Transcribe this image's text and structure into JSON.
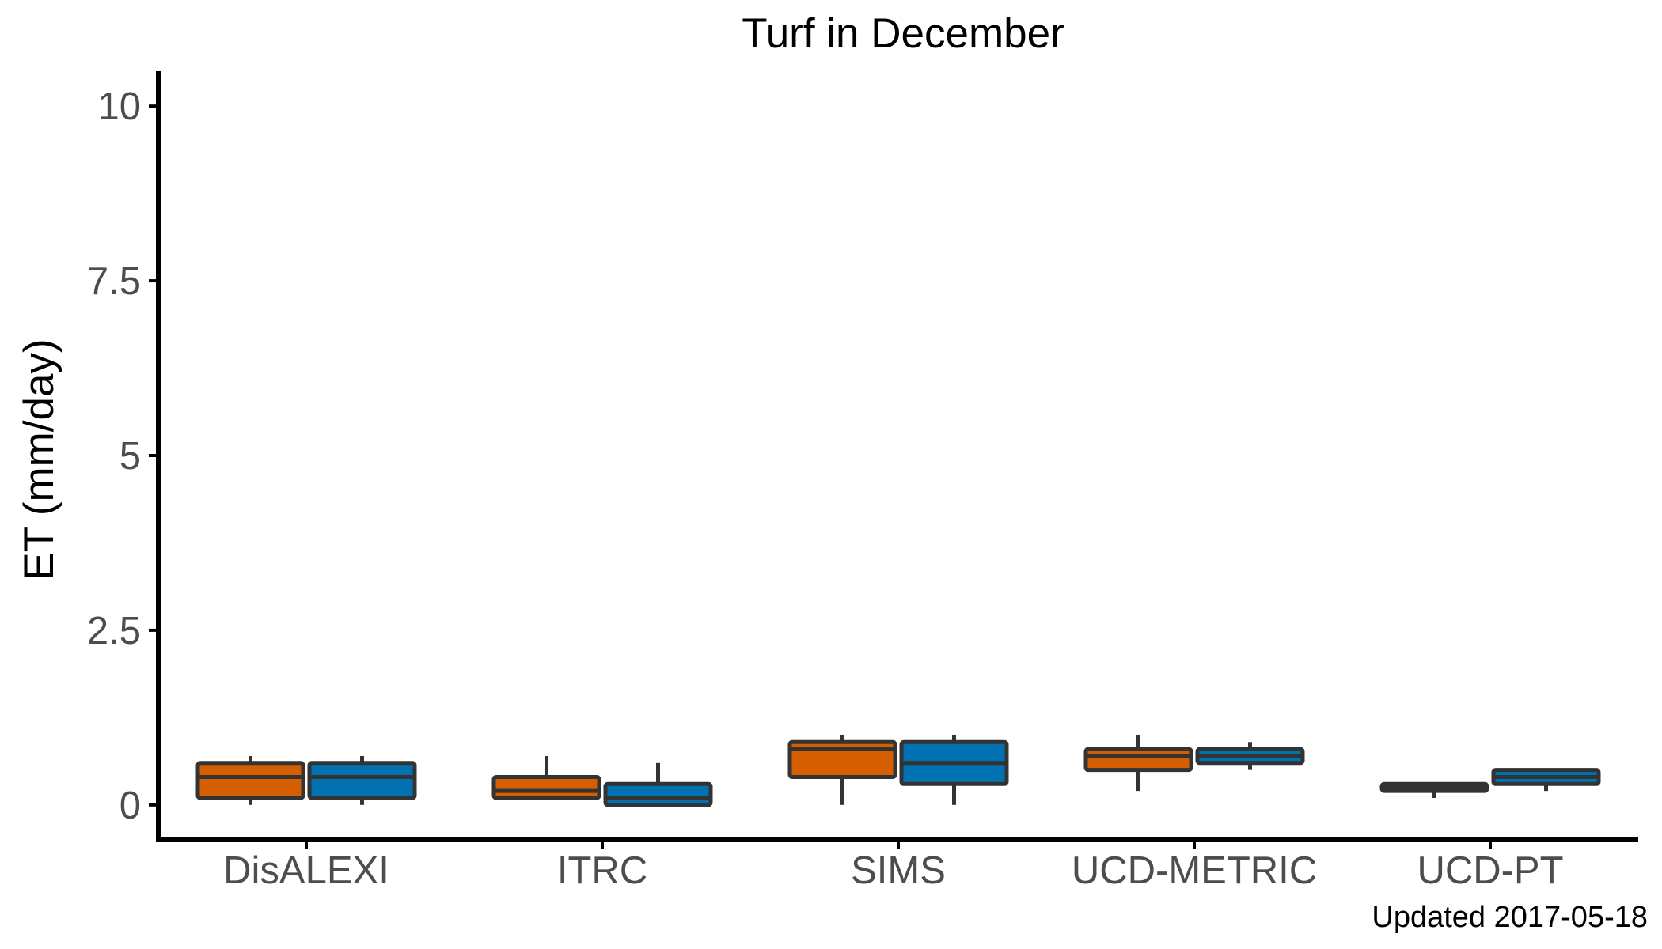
{
  "chart_data": {
    "type": "box",
    "title": "Turf in December",
    "xlabel": "",
    "ylabel": "ET (mm/day)",
    "ylim": [
      -0.5,
      10.5
    ],
    "yticks": [
      0,
      2.5,
      5,
      7.5,
      10
    ],
    "ytick_labels": [
      "0",
      "2.5",
      "5",
      "7.5",
      "10"
    ],
    "categories": [
      "DisALEXI",
      "ITRC",
      "SIMS",
      "UCD-METRIC",
      "UCD-PT"
    ],
    "grid": false,
    "legend": "none",
    "series": [
      {
        "color": "#d55e00",
        "boxes": [
          {
            "whisker_low": 0.0,
            "q1": 0.1,
            "median": 0.4,
            "q3": 0.6,
            "whisker_high": 0.7
          },
          {
            "whisker_low": 0.1,
            "q1": 0.1,
            "median": 0.2,
            "q3": 0.4,
            "whisker_high": 0.7
          },
          {
            "whisker_low": 0.0,
            "q1": 0.4,
            "median": 0.8,
            "q3": 0.9,
            "whisker_high": 1.0
          },
          {
            "whisker_low": 0.2,
            "q1": 0.5,
            "median": 0.7,
            "q3": 0.8,
            "whisker_high": 1.0
          },
          {
            "whisker_low": 0.1,
            "q1": 0.2,
            "median": 0.25,
            "q3": 0.3,
            "whisker_high": 0.3
          }
        ]
      },
      {
        "color": "#0072b2",
        "boxes": [
          {
            "whisker_low": 0.0,
            "q1": 0.1,
            "median": 0.4,
            "q3": 0.6,
            "whisker_high": 0.7
          },
          {
            "whisker_low": 0.0,
            "q1": 0.0,
            "median": 0.1,
            "q3": 0.3,
            "whisker_high": 0.6
          },
          {
            "whisker_low": 0.0,
            "q1": 0.3,
            "median": 0.6,
            "q3": 0.9,
            "whisker_high": 1.0
          },
          {
            "whisker_low": 0.5,
            "q1": 0.6,
            "median": 0.7,
            "q3": 0.8,
            "whisker_high": 0.9
          },
          {
            "whisker_low": 0.2,
            "q1": 0.3,
            "median": 0.4,
            "q3": 0.5,
            "whisker_high": 0.5
          }
        ]
      }
    ],
    "footnote": "Updated  2017-05-18"
  }
}
